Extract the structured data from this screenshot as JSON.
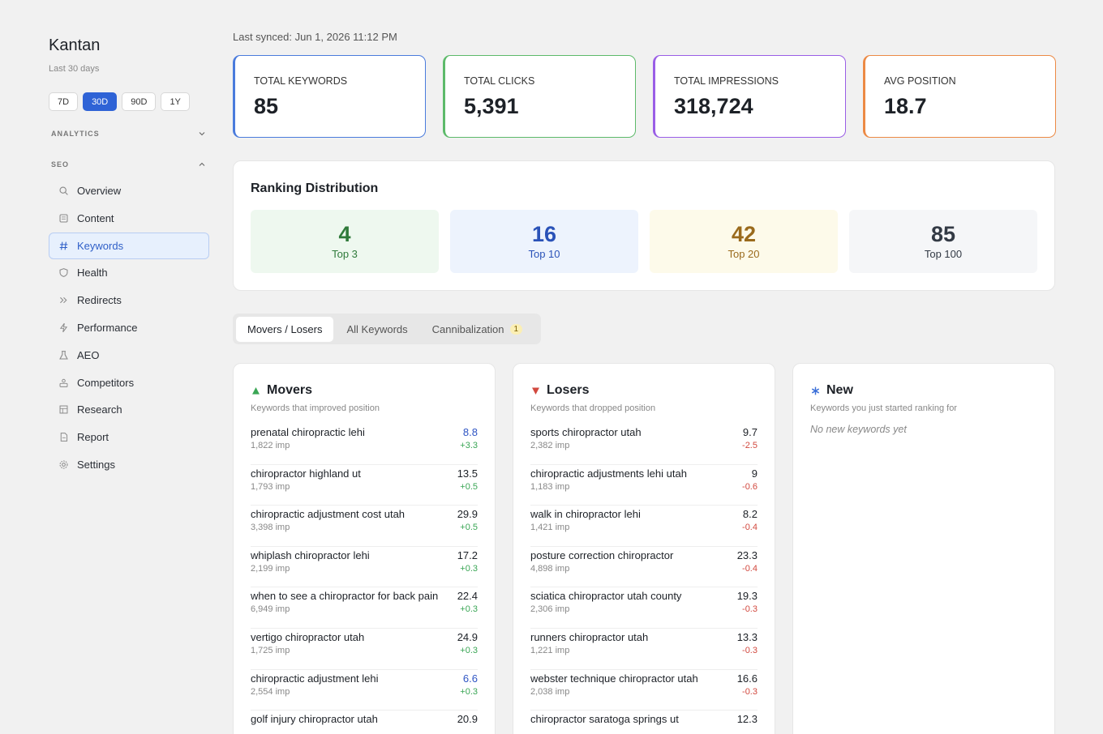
{
  "sidebar": {
    "brand": "Kantan",
    "subtitle": "Last 30 days",
    "ranges": [
      {
        "label": "7D"
      },
      {
        "label": "30D",
        "active": true
      },
      {
        "label": "90D"
      },
      {
        "label": "1Y"
      }
    ],
    "sections": [
      {
        "label": "ANALYTICS",
        "expanded": false,
        "items": []
      },
      {
        "label": "SEO",
        "expanded": true,
        "items": [
          {
            "label": "Overview"
          },
          {
            "label": "Content"
          },
          {
            "label": "Keywords",
            "active": true
          },
          {
            "label": "Health"
          },
          {
            "label": "Redirects"
          },
          {
            "label": "Performance"
          },
          {
            "label": "AEO"
          },
          {
            "label": "Competitors"
          },
          {
            "label": "Research"
          },
          {
            "label": "Report"
          },
          {
            "label": "Settings"
          }
        ]
      }
    ]
  },
  "header": {
    "last_synced": "Last synced: Jun 1, 2026 11:12 PM"
  },
  "stats": [
    {
      "label": "TOTAL KEYWORDS",
      "value": "85",
      "color": "#4a7bdc"
    },
    {
      "label": "TOTAL CLICKS",
      "value": "5,391",
      "color": "#5dba6a"
    },
    {
      "label": "TOTAL IMPRESSIONS",
      "value": "318,724",
      "color": "#9a5ee6"
    },
    {
      "label": "AVG POSITION",
      "value": "18.7",
      "color": "#ec8a45"
    }
  ],
  "distribution": {
    "title": "Ranking Distribution",
    "buckets": [
      {
        "value": "4",
        "label": "Top 3",
        "color": "#2f7a3a",
        "background": "#eef8ef"
      },
      {
        "value": "16",
        "label": "Top 10",
        "color": "#2a52b8",
        "background": "#edf3fd"
      },
      {
        "value": "42",
        "label": "Top 20",
        "color": "#9a6a1c",
        "background": "#fdfaea"
      },
      {
        "value": "85",
        "label": "Top 100",
        "color": "#333a45",
        "background": "#f5f6f8"
      }
    ]
  },
  "tabs": [
    {
      "label": "Movers / Losers",
      "active": true
    },
    {
      "label": "All Keywords"
    },
    {
      "label": "Cannibalization",
      "badge": "1"
    }
  ],
  "panels": [
    {
      "title": "Movers",
      "icon": "up",
      "color": "#3aa655",
      "subtitle": "Keywords that improved position",
      "rows": [
        {
          "keyword": "prenatal chiropractic lehi",
          "impressions": "1,822 imp",
          "position": "8.8",
          "change": "+3.3"
        },
        {
          "keyword": "chiropractor highland ut",
          "impressions": "1,793 imp",
          "position": "13.5",
          "change": "+0.5"
        },
        {
          "keyword": "chiropractic adjustment cost utah",
          "impressions": "3,398 imp",
          "position": "29.9",
          "change": "+0.5"
        },
        {
          "keyword": "whiplash chiropractor lehi",
          "impressions": "2,199 imp",
          "position": "17.2",
          "change": "+0.3"
        },
        {
          "keyword": "when to see a chiropractor for back pain",
          "impressions": "6,949 imp",
          "position": "22.4",
          "change": "+0.3"
        },
        {
          "keyword": "vertigo chiropractor utah",
          "impressions": "1,725 imp",
          "position": "24.9",
          "change": "+0.3"
        },
        {
          "keyword": "chiropractic adjustment lehi",
          "impressions": "2,554 imp",
          "position": "6.6",
          "change": "+0.3"
        },
        {
          "keyword": "golf injury chiropractor utah",
          "position": "20.9"
        }
      ]
    },
    {
      "title": "Losers",
      "icon": "down",
      "color": "#d2493f",
      "subtitle": "Keywords that dropped position",
      "rows": [
        {
          "keyword": "sports chiropractor utah",
          "impressions": "2,382 imp",
          "position": "9.7",
          "change": "-2.5"
        },
        {
          "keyword": "chiropractic adjustments lehi utah",
          "impressions": "1,183 imp",
          "position": "9",
          "change": "-0.6"
        },
        {
          "keyword": "walk in chiropractor lehi",
          "impressions": "1,421 imp",
          "position": "8.2",
          "change": "-0.4"
        },
        {
          "keyword": "posture correction chiropractor",
          "impressions": "4,898 imp",
          "position": "23.3",
          "change": "-0.4"
        },
        {
          "keyword": "sciatica chiropractor utah county",
          "impressions": "2,306 imp",
          "position": "19.3",
          "change": "-0.3"
        },
        {
          "keyword": "runners chiropractor utah",
          "impressions": "1,221 imp",
          "position": "13.3",
          "change": "-0.3"
        },
        {
          "keyword": "webster technique chiropractor utah",
          "impressions": "2,038 imp",
          "position": "16.6",
          "change": "-0.3"
        },
        {
          "keyword": "chiropractor saratoga springs ut",
          "position": "12.3"
        }
      ]
    },
    {
      "title": "New",
      "icon": "star",
      "color": "#3b6fd8",
      "subtitle": "Keywords you just started ranking for",
      "empty": "No new keywords yet",
      "rows": []
    }
  ]
}
